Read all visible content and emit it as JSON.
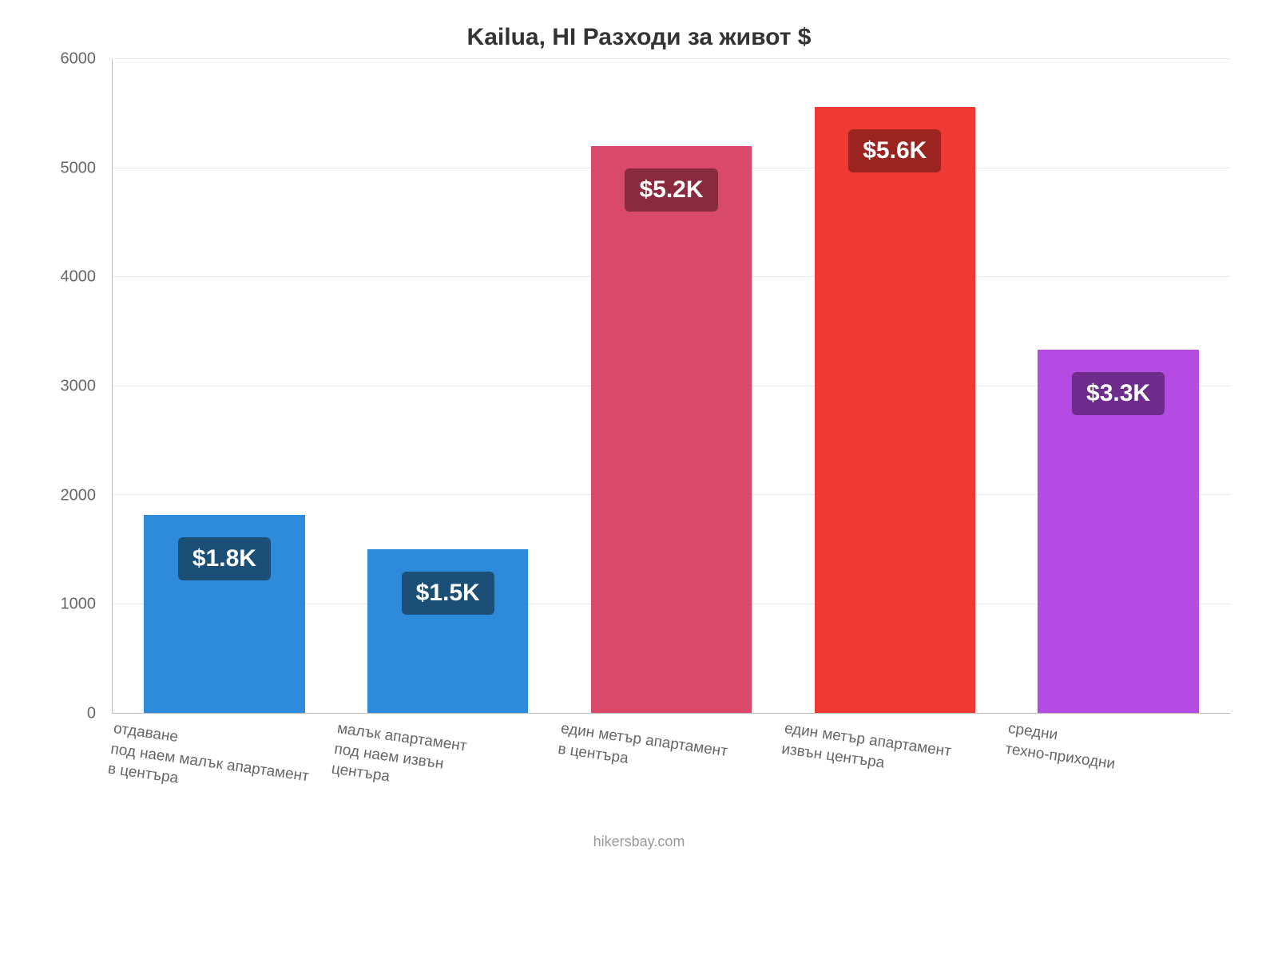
{
  "chart": {
    "type": "bar",
    "title": "Kailua, HI Разходи за живот $",
    "title_fontsize": 30,
    "title_color": "#333333",
    "background_color": "#ffffff",
    "grid_color": "#e9e9e9",
    "axis_color": "#bfbfbf",
    "tick_color": "#666666",
    "tick_fontsize": 20,
    "ylim_min": 0,
    "ylim_max": 6000,
    "ytick_step": 1000,
    "yticks": [
      0,
      1000,
      2000,
      3000,
      4000,
      5000,
      6000
    ],
    "bar_width_ratio": 0.72,
    "xlabel_fontsize": 19,
    "xlabel_rotation_deg": 8,
    "datalabel_fontsize": 30,
    "bars": [
      {
        "category": "отдаване\nпод наем малък апартамент\nв центъра",
        "value": 1820,
        "value_label": "$1.8K",
        "bar_color": "#2e8ada",
        "label_bg": "#1b4f76"
      },
      {
        "category": "малък апартамент\nпод наем извън\nцентъра",
        "value": 1500,
        "value_label": "$1.5K",
        "bar_color": "#2e8ada",
        "label_bg": "#1b4f76"
      },
      {
        "category": "един метър апартамент\nв центъра",
        "value": 5200,
        "value_label": "$5.2K",
        "bar_color": "#d94a6a",
        "label_bg": "#8a2a3f"
      },
      {
        "category": "един метър апартамент\nизвън центъра",
        "value": 5560,
        "value_label": "$5.6K",
        "bar_color": "#ee3a32",
        "label_bg": "#992420"
      },
      {
        "category": "средни\nтехно-приходни",
        "value": 3330,
        "value_label": "$3.3K",
        "bar_color": "#b44be3",
        "label_bg": "#6d2b8c"
      }
    ]
  },
  "footer": {
    "text": "hikersbay.com",
    "color": "#999999",
    "fontsize": 18
  }
}
